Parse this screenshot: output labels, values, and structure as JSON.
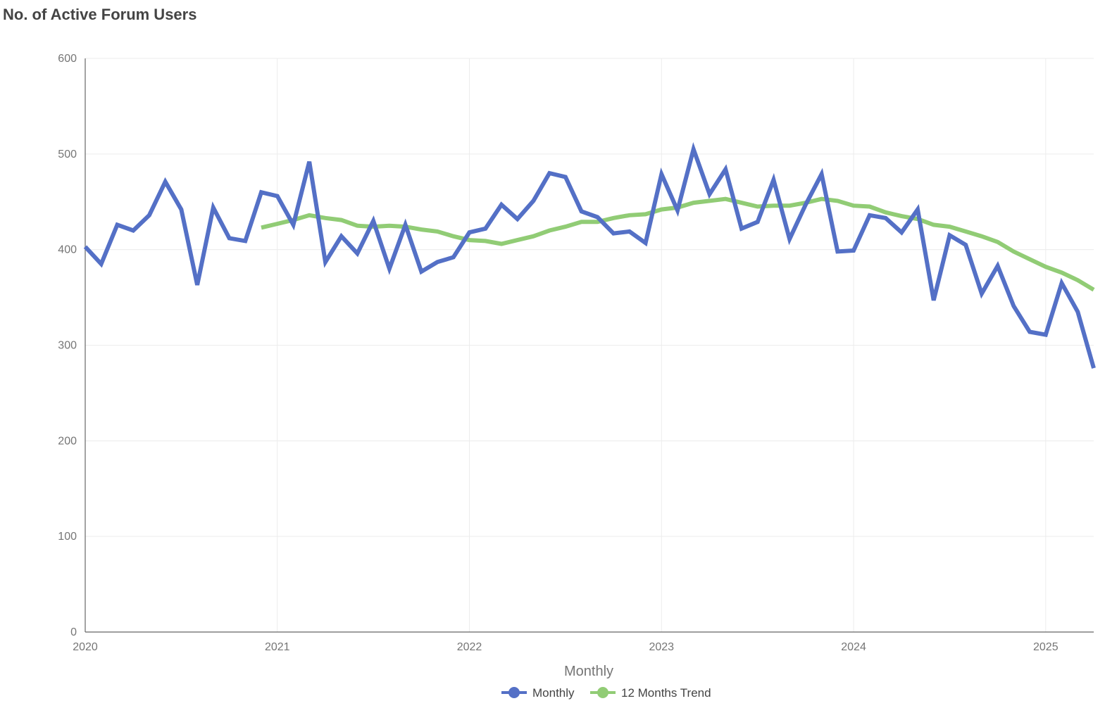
{
  "chart_data": {
    "type": "line",
    "title": "No. of Active Forum Users",
    "xlabel": "Monthly",
    "ylabel": "",
    "ylim": [
      0,
      600
    ],
    "yticks": [
      0,
      100,
      200,
      300,
      400,
      500,
      600
    ],
    "xlim": [
      "2020-01",
      "2025-04"
    ],
    "xticks": [
      "2020",
      "2021",
      "2022",
      "2023",
      "2024",
      "2025"
    ],
    "grid": true,
    "legend_position": "bottom",
    "series": [
      {
        "name": "Monthly",
        "color": "#5470C6",
        "start": "2020-01",
        "values": [
          403,
          385,
          426,
          420,
          436,
          471,
          442,
          363,
          444,
          412,
          409,
          460,
          456,
          426,
          492,
          387,
          414,
          396,
          430,
          380,
          426,
          377,
          387,
          392,
          418,
          422,
          447,
          432,
          451,
          480,
          476,
          440,
          434,
          417,
          419,
          407,
          479,
          441,
          505,
          458,
          484,
          422,
          429,
          473,
          411,
          447,
          479,
          398,
          399,
          436,
          433,
          418,
          442,
          347,
          415,
          405,
          354,
          383,
          341,
          314,
          311,
          365,
          335,
          276
        ]
      },
      {
        "name": "12 Months Trend",
        "color": "#91CC75",
        "start": "2020-12",
        "values": [
          423,
          427,
          431,
          436,
          433,
          431,
          425,
          424,
          425,
          424,
          421,
          419,
          414,
          410,
          409,
          406,
          410,
          414,
          420,
          424,
          429,
          429,
          433,
          436,
          437,
          442,
          444,
          449,
          451,
          453,
          449,
          445,
          446,
          446,
          449,
          453,
          451,
          446,
          445,
          439,
          435,
          432,
          426,
          424,
          419,
          414,
          408,
          398,
          390,
          382,
          376,
          368,
          358
        ]
      }
    ]
  }
}
